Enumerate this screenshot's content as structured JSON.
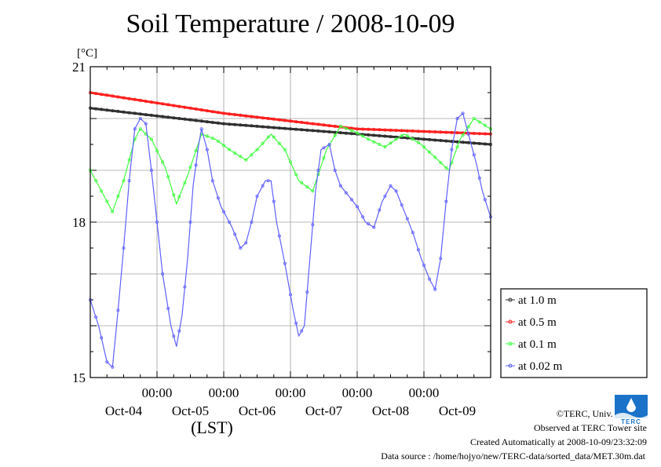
{
  "chart_data": {
    "type": "line",
    "title": "Soil Temperature / 2008-10-09",
    "ylabel": "[°C]",
    "xlabel": "(LST)",
    "ylim": [
      15,
      21
    ],
    "y_ticks": [
      15,
      18,
      21
    ],
    "x_range_hours": [
      0,
      144
    ],
    "x_tick_times": [
      "00:00",
      "00:00",
      "00:00",
      "00:00",
      "00:00"
    ],
    "x_tick_dates": [
      "Oct-04",
      "Oct-05",
      "Oct-06",
      "Oct-07",
      "Oct-08",
      "Oct-09"
    ],
    "grid": true,
    "legend_position": "right",
    "series": [
      {
        "name": "at 1.0 m",
        "color": "#303030",
        "points": [
          [
            0,
            20.2
          ],
          [
            24,
            20.05
          ],
          [
            48,
            19.9
          ],
          [
            72,
            19.8
          ],
          [
            96,
            19.7
          ],
          [
            120,
            19.6
          ],
          [
            144,
            19.5
          ]
        ]
      },
      {
        "name": "at 0.5 m",
        "color": "#ff2020",
        "points": [
          [
            0,
            20.5
          ],
          [
            24,
            20.3
          ],
          [
            48,
            20.1
          ],
          [
            72,
            19.95
          ],
          [
            96,
            19.8
          ],
          [
            120,
            19.75
          ],
          [
            144,
            19.7
          ]
        ]
      },
      {
        "name": "at 0.1 m",
        "color": "#40ff40",
        "points": [
          [
            0,
            19.0
          ],
          [
            4,
            18.6
          ],
          [
            8,
            18.2
          ],
          [
            12,
            18.8
          ],
          [
            16,
            19.6
          ],
          [
            18,
            19.8
          ],
          [
            22,
            19.6
          ],
          [
            27,
            19.05
          ],
          [
            31,
            18.35
          ],
          [
            35,
            18.9
          ],
          [
            40,
            19.7
          ],
          [
            45,
            19.6
          ],
          [
            50,
            19.4
          ],
          [
            56,
            19.2
          ],
          [
            60,
            19.4
          ],
          [
            65,
            19.7
          ],
          [
            70,
            19.4
          ],
          [
            75,
            18.8
          ],
          [
            80,
            18.6
          ],
          [
            85,
            19.4
          ],
          [
            90,
            19.85
          ],
          [
            95,
            19.75
          ],
          [
            100,
            19.6
          ],
          [
            106,
            19.45
          ],
          [
            110,
            19.6
          ],
          [
            113,
            19.7
          ],
          [
            119,
            19.5
          ],
          [
            125,
            19.2
          ],
          [
            129,
            19.0
          ],
          [
            133,
            19.6
          ],
          [
            138,
            20.0
          ],
          [
            141,
            19.9
          ],
          [
            144,
            19.8
          ]
        ]
      },
      {
        "name": "at 0.02 m",
        "color": "#6060ff",
        "points": [
          [
            0,
            16.5
          ],
          [
            3,
            16.0
          ],
          [
            6,
            15.3
          ],
          [
            8,
            15.2
          ],
          [
            10,
            16.3
          ],
          [
            12,
            17.5
          ],
          [
            14,
            18.8
          ],
          [
            16,
            19.8
          ],
          [
            18,
            20.0
          ],
          [
            20,
            19.9
          ],
          [
            22,
            19.0
          ],
          [
            24,
            18.0
          ],
          [
            26,
            17.0
          ],
          [
            29,
            16.0
          ],
          [
            31,
            15.6
          ],
          [
            33,
            16.2
          ],
          [
            35,
            17.3
          ],
          [
            37,
            18.7
          ],
          [
            39,
            19.5
          ],
          [
            40,
            19.8
          ],
          [
            42,
            19.4
          ],
          [
            44,
            18.8
          ],
          [
            47,
            18.3
          ],
          [
            51,
            17.9
          ],
          [
            54,
            17.5
          ],
          [
            56,
            17.6
          ],
          [
            58,
            18.0
          ],
          [
            60,
            18.5
          ],
          [
            63,
            18.8
          ],
          [
            65,
            18.8
          ],
          [
            67,
            18.0
          ],
          [
            70,
            17.2
          ],
          [
            73,
            16.3
          ],
          [
            75,
            15.8
          ],
          [
            77,
            16.0
          ],
          [
            79,
            17.3
          ],
          [
            81,
            18.6
          ],
          [
            83,
            19.4
          ],
          [
            86,
            19.5
          ],
          [
            88,
            19.0
          ],
          [
            90,
            18.7
          ],
          [
            93,
            18.5
          ],
          [
            96,
            18.3
          ],
          [
            99,
            18.0
          ],
          [
            102,
            17.9
          ],
          [
            105,
            18.4
          ],
          [
            108,
            18.7
          ],
          [
            110,
            18.6
          ],
          [
            113,
            18.2
          ],
          [
            116,
            17.8
          ],
          [
            119,
            17.3
          ],
          [
            122,
            16.9
          ],
          [
            124,
            16.7
          ],
          [
            126,
            17.3
          ],
          [
            128,
            18.4
          ],
          [
            130,
            19.4
          ],
          [
            132,
            20.0
          ],
          [
            134,
            20.1
          ],
          [
            136,
            19.7
          ],
          [
            139,
            19.1
          ],
          [
            141,
            18.6
          ],
          [
            144,
            18.1
          ]
        ]
      }
    ]
  },
  "footer": {
    "copyright": "©TERC, Univ. Tsukuba",
    "observed": "Observed at TERC Tower site",
    "created": "Created Automatically at 2008-10-09/23:32:09",
    "source": "Data source : /home/hojyo/new/TERC-data/sorted_data/MET.30m.dat",
    "logo_text": "TERC"
  }
}
